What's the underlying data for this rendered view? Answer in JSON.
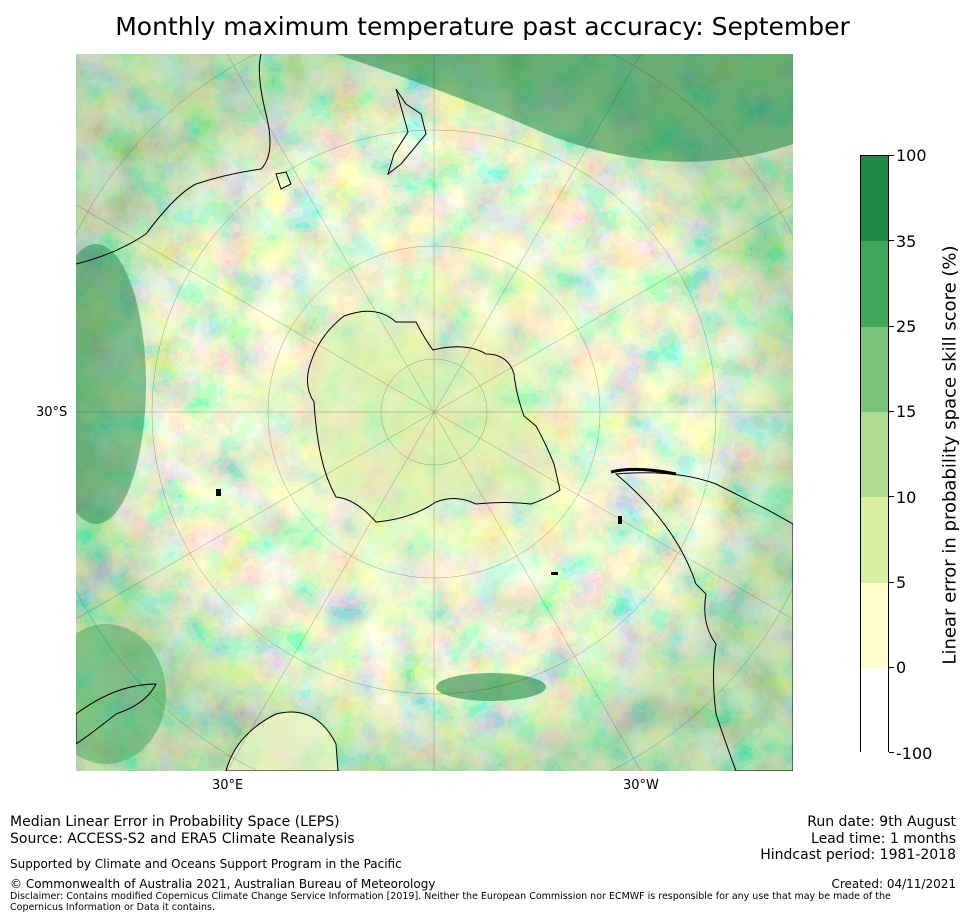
{
  "title": "Monthly maximum temperature past accuracy: September",
  "map": {
    "lat_label": "30°S",
    "lon_labels": [
      "30°E",
      "30°W"
    ]
  },
  "colorbar": {
    "title": "Linear error in probability space skill score (%)",
    "tick_labels": [
      "100",
      "35",
      "25",
      "15",
      "10",
      "5",
      "0",
      "-100"
    ],
    "bins": [
      {
        "range": "35 to 100",
        "color": "#228847"
      },
      {
        "range": "25 to 35",
        "color": "#3fa65b"
      },
      {
        "range": "15 to 25",
        "color": "#79c37b"
      },
      {
        "range": "10 to 15",
        "color": "#aedc94"
      },
      {
        "range": "5 to 10",
        "color": "#d9efa4"
      },
      {
        "range": "0 to 5",
        "color": "#ffffcc"
      },
      {
        "range": "-100 to 0",
        "color": "#ffffff"
      }
    ]
  },
  "footer": {
    "line1": "Median Linear Error in Probability Space (LEPS)",
    "line2": "Source: ACCESS-S2 and ERA5 Climate Reanalysis",
    "line3": "Supported by Climate and Oceans Support Program in the Pacific",
    "line4": "© Commonwealth of Australia 2021, Australian Bureau of Meteorology",
    "disclaimer": "Disclaimer: Contains modified Copernicus Climate Change Service Information [2019]. Neither the European Commission nor ECMWF is responsible for any use that may be made of the Copernicus Information or Data it contains.",
    "run_date": "Run date: 9th August",
    "lead_time": "Lead time: 1 months",
    "hindcast": "Hindcast period: 1981-2018",
    "created": "Created: 04/11/2021"
  }
}
